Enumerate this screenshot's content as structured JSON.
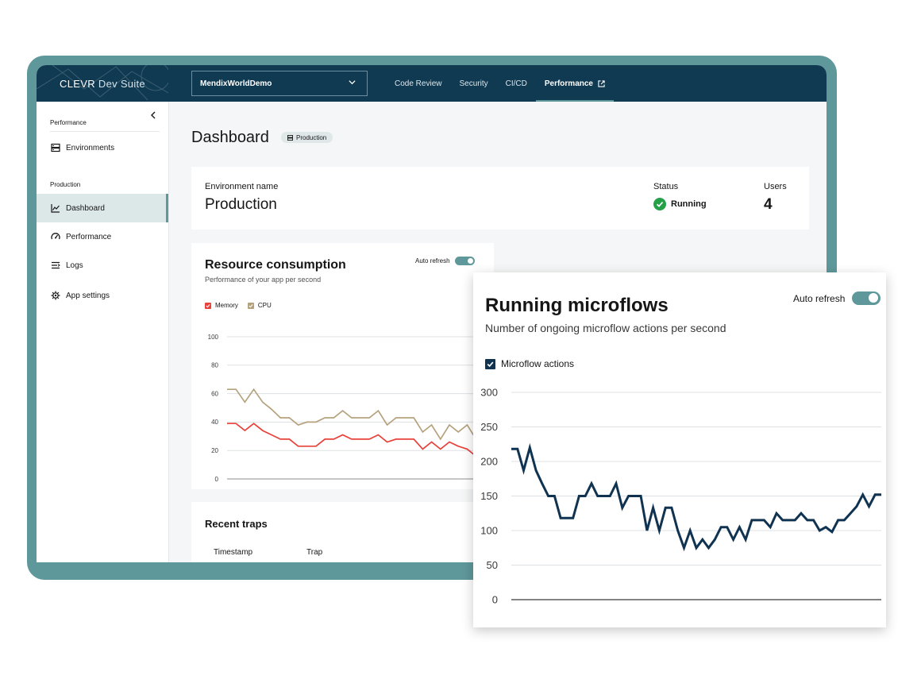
{
  "header": {
    "brand_main": "CLEVR",
    "brand_sub": "Dev Suite",
    "app_selector": "MendixWorldDemo",
    "nav": [
      {
        "label": "Code Review"
      },
      {
        "label": "Security"
      },
      {
        "label": "CI/CD"
      },
      {
        "label": "Performance",
        "active": true
      }
    ]
  },
  "sidebar": {
    "section1": "Performance",
    "environments": "Environments",
    "section2": "Production",
    "items": [
      {
        "label": "Dashboard",
        "icon": "line-chart-icon",
        "active": true
      },
      {
        "label": "Performance",
        "icon": "gauge-icon"
      },
      {
        "label": "Logs",
        "icon": "logs-icon"
      },
      {
        "label": "App settings",
        "icon": "gear-icon"
      }
    ]
  },
  "page": {
    "title": "Dashboard",
    "tag": "Production"
  },
  "environment": {
    "name_label": "Environment name",
    "name_value": "Production",
    "status_label": "Status",
    "status_value": "Running",
    "users_label": "Users",
    "users_value": "4"
  },
  "resource": {
    "title": "Resource consumption",
    "subtitle": "Performance of your app per second",
    "auto_refresh": "Auto refresh"
  },
  "traps": {
    "title": "Recent traps",
    "col_timestamp": "Timestamp",
    "col_trap": "Trap"
  },
  "microflows": {
    "title": "Running microflows",
    "subtitle": "Number of ongoing microflow actions per second",
    "auto_refresh": "Auto refresh"
  },
  "colors": {
    "frame": "#5f989b",
    "topbar": "#103a52",
    "memory": "#e8423a",
    "cpu": "#b5a27d",
    "microflow": "#0f3350"
  },
  "chart_data": [
    {
      "type": "line",
      "ylim": [
        0,
        100
      ],
      "yticks": [
        0,
        20,
        40,
        60,
        80,
        100
      ],
      "grid": true,
      "legend": "top-left",
      "series": [
        {
          "name": "Memory",
          "color": "#e8423a",
          "values": [
            39,
            39,
            34,
            39,
            34,
            31,
            28,
            28,
            23,
            23,
            23,
            28,
            28,
            31,
            28,
            28,
            28,
            31,
            26,
            28,
            28,
            28,
            21,
            26,
            21,
            26,
            23,
            21,
            16,
            20,
            23
          ]
        },
        {
          "name": "CPU",
          "color": "#b5a27d",
          "values": [
            63,
            63,
            54,
            63,
            54,
            49,
            43,
            43,
            38,
            40,
            40,
            43,
            43,
            48,
            43,
            43,
            43,
            48,
            38,
            43,
            43,
            43,
            33,
            38,
            28,
            38,
            33,
            38,
            28,
            23,
            28
          ]
        }
      ]
    },
    {
      "type": "line",
      "ylim": [
        0,
        300
      ],
      "yticks": [
        0,
        50,
        100,
        150,
        200,
        250,
        300
      ],
      "grid": true,
      "legend": "top-left",
      "series": [
        {
          "name": "Microflow actions",
          "color": "#0f3350",
          "values": [
            218,
            218,
            187,
            220,
            187,
            168,
            150,
            150,
            118,
            118,
            118,
            150,
            150,
            168,
            150,
            150,
            150,
            168,
            133,
            150,
            150,
            150,
            100,
            133,
            100,
            133,
            133,
            100,
            75,
            100,
            75,
            87,
            75,
            87,
            105,
            105,
            87,
            105,
            87,
            115,
            115,
            115,
            105,
            125,
            115,
            115,
            115,
            125,
            115,
            115,
            100,
            105,
            98,
            115,
            115,
            125,
            135,
            152,
            135,
            152,
            152
          ]
        }
      ]
    }
  ]
}
